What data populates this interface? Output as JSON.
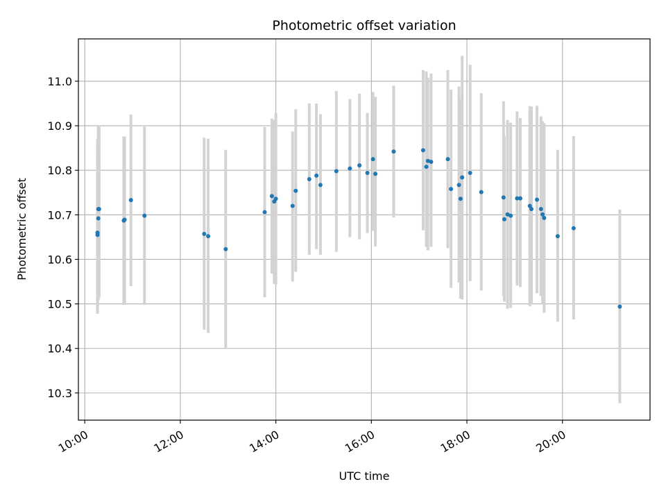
{
  "chart_data": {
    "type": "scatter",
    "title": "Photometric offset variation",
    "xlabel": "UTC time",
    "ylabel": "Photometric offset",
    "grid": true,
    "xlim": [
      "09:52",
      "21:50"
    ],
    "ylim": [
      10.239,
      11.095
    ],
    "x_ticks": [
      "10:00",
      "12:00",
      "14:00",
      "16:00",
      "18:00",
      "20:00"
    ],
    "y_ticks": [
      10.3,
      10.4,
      10.5,
      10.6,
      10.7,
      10.8,
      10.9,
      11.0
    ],
    "y_tick_labels": [
      "10.3",
      "10.4",
      "10.5",
      "10.6",
      "10.7",
      "10.8",
      "10.9",
      "11.0"
    ],
    "colors": {
      "point": "#1f77b4",
      "errorbar": "#d3d3d3",
      "grid": "#b0b0b0"
    },
    "series": [
      {
        "x": [
          "10:16",
          "10:16",
          "10:17",
          "10:17",
          "10:18",
          "10:49",
          "10:50",
          "10:58",
          "11:15",
          "12:30",
          "12:35",
          "12:57",
          "13:46",
          "13:55",
          "13:58",
          "14:00",
          "14:21",
          "14:25",
          "14:42",
          "14:51",
          "14:56",
          "15:16",
          "15:33",
          "15:45",
          "15:55",
          "16:02",
          "16:05",
          "16:28",
          "17:05",
          "17:09",
          "17:11",
          "17:15",
          "17:36",
          "17:40",
          "17:50",
          "17:52",
          "17:54",
          "18:04",
          "18:18",
          "18:46",
          "18:47",
          "18:51",
          "18:55",
          "19:03",
          "19:07",
          "19:19",
          "19:21",
          "19:28",
          "19:33",
          "19:35",
          "19:37",
          "19:54",
          "20:14",
          "21:12"
        ],
        "y": [
          10.655,
          10.66,
          10.692,
          10.713,
          10.713,
          10.687,
          10.689,
          10.733,
          10.698,
          10.657,
          10.652,
          10.623,
          10.706,
          10.742,
          10.73,
          10.736,
          10.72,
          10.754,
          10.78,
          10.788,
          10.767,
          10.798,
          10.804,
          10.811,
          10.794,
          10.825,
          10.792,
          10.842,
          10.845,
          10.808,
          10.821,
          10.819,
          10.825,
          10.758,
          10.767,
          10.736,
          10.784,
          10.794,
          10.751,
          10.739,
          10.69,
          10.701,
          10.698,
          10.737,
          10.737,
          10.72,
          10.713,
          10.734,
          10.713,
          10.701,
          10.693,
          10.652,
          10.67,
          10.494
        ],
        "yerr_low": [
          10.478,
          10.508,
          10.508,
          10.514,
          10.514,
          10.498,
          10.498,
          10.54,
          10.498,
          10.442,
          10.435,
          10.4,
          10.515,
          10.568,
          10.545,
          10.543,
          10.55,
          10.572,
          10.61,
          10.623,
          10.61,
          10.617,
          10.65,
          10.645,
          10.659,
          10.664,
          10.629,
          10.694,
          10.665,
          10.628,
          10.62,
          10.628,
          10.625,
          10.536,
          10.548,
          10.512,
          10.51,
          10.551,
          10.53,
          10.518,
          10.505,
          10.489,
          10.491,
          10.541,
          10.538,
          10.495,
          10.499,
          10.524,
          10.518,
          10.5,
          10.48,
          10.46,
          10.465,
          10.277
        ],
        "yerr_high": [
          10.833,
          10.87,
          10.9,
          10.9,
          10.9,
          10.876,
          10.876,
          10.925,
          10.898,
          10.873,
          10.871,
          10.846,
          10.897,
          10.916,
          10.913,
          10.929,
          10.887,
          10.937,
          10.95,
          10.95,
          10.926,
          10.978,
          10.96,
          10.972,
          10.929,
          10.976,
          10.965,
          10.99,
          11.025,
          11.022,
          11.008,
          11.017,
          11.025,
          10.981,
          10.988,
          10.96,
          11.057,
          11.037,
          10.973,
          10.955,
          10.876,
          10.913,
          10.907,
          10.932,
          10.917,
          10.944,
          10.943,
          10.945,
          10.921,
          10.91,
          10.906,
          10.846,
          10.877,
          10.712
        ]
      }
    ]
  }
}
